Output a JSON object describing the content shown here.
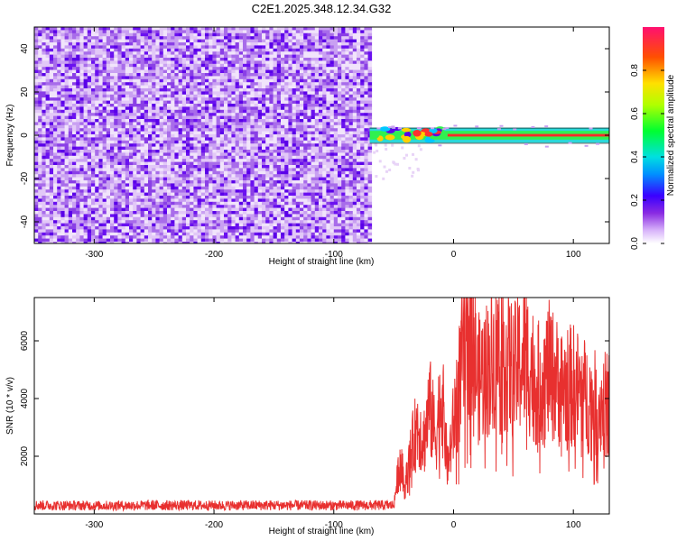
{
  "title": "C2E1.2025.348.12.34.G32",
  "colors": {
    "line": "#e8302f",
    "spectrogram_low": "#7b1fe8",
    "spectrogram_bg": "#ffffff",
    "colormap": [
      "#f2e6fb",
      "#9b59f0",
      "#6a00ff",
      "#2040ff",
      "#00c8ff",
      "#00ff60",
      "#c8ff00",
      "#ffd000",
      "#ff3000",
      "#ff1070"
    ]
  },
  "chart_data": [
    {
      "type": "heatmap",
      "name": "spectrogram",
      "xlabel": "Height of straight line (km)",
      "ylabel": "Frequency (Hz)",
      "xlim": [
        -350,
        130
      ],
      "ylim": [
        -50,
        50
      ],
      "xticks": [
        -300,
        -200,
        -100,
        0,
        100
      ],
      "xtick_labels": [
        "-300",
        "-200",
        "-100",
        "0",
        "100"
      ],
      "yticks": [
        -40,
        -20,
        0,
        20,
        40
      ],
      "ytick_labels": [
        "-40",
        "-20",
        "0",
        "20",
        "40"
      ],
      "noise_region": [
        -350,
        -70
      ],
      "signal_start": -70,
      "signal_band_hz": [
        -2,
        2
      ],
      "colorbar": {
        "label": "Normalized spectral amplitude",
        "range": [
          0,
          1
        ],
        "ticks": [
          0.0,
          0.2,
          0.4,
          0.6,
          0.8
        ],
        "tick_labels": [
          "0.0",
          "0.2",
          "0.4",
          "0.6",
          "0.8"
        ]
      }
    },
    {
      "type": "line",
      "name": "snr",
      "xlabel": "Height of straight line (km)",
      "ylabel": "SNR (10 * v/v)",
      "xlim": [
        -350,
        130
      ],
      "ylim": [
        0,
        7500
      ],
      "xticks": [
        -300,
        -200,
        -100,
        0,
        100
      ],
      "xtick_labels": [
        "-300",
        "-200",
        "-100",
        "0",
        "100"
      ],
      "yticks": [
        2000,
        4000,
        6000
      ],
      "ytick_labels": [
        "2000",
        "4000",
        "6000"
      ],
      "series": [
        {
          "name": "SNR",
          "x": [
            -350,
            -300,
            -250,
            -200,
            -150,
            -100,
            -60,
            -50,
            -45,
            -40,
            -35,
            -30,
            -25,
            -20,
            -15,
            -10,
            -5,
            0,
            5,
            10,
            15,
            20,
            30,
            40,
            50,
            60,
            70,
            80,
            90,
            100,
            110,
            120,
            130
          ],
          "values": [
            300,
            280,
            300,
            290,
            300,
            290,
            300,
            300,
            2000,
            1200,
            2500,
            3500,
            2800,
            4200,
            3000,
            4800,
            1800,
            3500,
            5200,
            6800,
            7200,
            5200,
            5800,
            6500,
            5500,
            6200,
            5000,
            5600,
            4900,
            5000,
            4600,
            4200,
            4300
          ]
        }
      ]
    }
  ]
}
